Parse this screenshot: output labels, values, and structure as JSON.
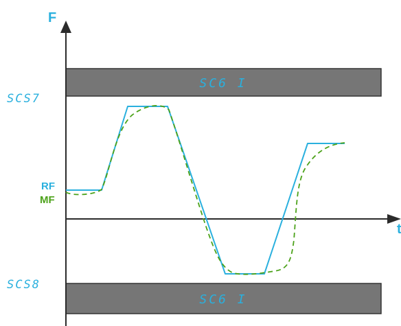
{
  "axes": {
    "y_letter": "F",
    "x_letter": "t"
  },
  "levels": {
    "upper": "SCS7",
    "lower": "SCS8"
  },
  "bands": {
    "upper_label": "SC6 I",
    "lower_label": "SC6 I"
  },
  "signals": {
    "rf_label": "RF",
    "mf_label": "MF"
  },
  "colors": {
    "axis": "#2b2b2b",
    "band_fill": "#767676",
    "band_stroke": "#333333",
    "rf": "#2ab0de",
    "mf": "#4ca21a",
    "seg_text": "#2ab0de"
  }
}
